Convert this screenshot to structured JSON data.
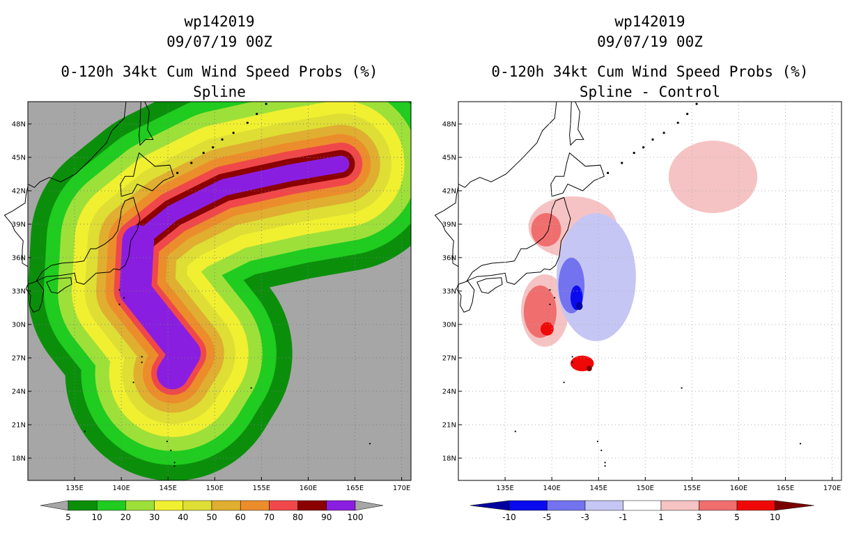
{
  "left_panel": {
    "title_line1": "wp142019",
    "title_line2": "09/07/19 00Z",
    "subtitle_line1": "0-120h 34kt Cum Wind Speed Probs (%)",
    "subtitle_line2": "Spline"
  },
  "right_panel": {
    "title_line1": "wp142019",
    "title_line2": "09/07/19 00Z",
    "subtitle_line1": "0-120h 34kt Cum Wind Speed Probs (%)",
    "subtitle_line2": "Spline - Control"
  },
  "colors": {
    "background_gray": "#a6a6a6",
    "coast": "#000000",
    "grid": "#b0b0b0"
  },
  "chart_data": [
    {
      "type": "heatmap",
      "title": "0-120h 34kt Cum Wind Speed Probs (%) Spline",
      "x_ticks": [
        "135E",
        "140E",
        "145E",
        "150E",
        "155E",
        "160E",
        "165E",
        "170E"
      ],
      "y_ticks": [
        "48N",
        "45N",
        "42N",
        "39N",
        "36N",
        "33N",
        "30N",
        "27N",
        "24N",
        "21N",
        "18N"
      ],
      "xlim": [
        130,
        171
      ],
      "ylim": [
        16,
        50
      ],
      "legend": {
        "labels": [
          "5",
          "10",
          "20",
          "30",
          "40",
          "50",
          "60",
          "70",
          "80",
          "90",
          "100"
        ],
        "colors": [
          "#0b8f0b",
          "#1fcc1f",
          "#9ee03a",
          "#f0f030",
          "#dede35",
          "#e0ae30",
          "#ec8d2b",
          "#f0484a",
          "#8b0000",
          "#8a1ee0"
        ]
      },
      "track": [
        [
          145.5,
          25.6
        ],
        [
          146.8,
          27.4
        ],
        [
          141.5,
          33.0
        ],
        [
          141.8,
          37.5
        ],
        [
          145.5,
          40.0
        ],
        [
          151,
          42.3
        ],
        [
          158,
          43.6
        ],
        [
          163.5,
          44.4
        ]
      ],
      "contours": [
        {
          "level": 5,
          "width": 11.5,
          "color_index": 0
        },
        {
          "level": 10,
          "width": 9.8,
          "color_index": 1
        },
        {
          "level": 20,
          "width": 8.3,
          "color_index": 2
        },
        {
          "level": 30,
          "width": 6.8,
          "color_index": 3
        },
        {
          "level": 40,
          "width": 5.4,
          "color_index": 4
        },
        {
          "level": 50,
          "width": 4.2,
          "color_index": 5
        },
        {
          "level": 60,
          "width": 3.2,
          "color_index": 6
        },
        {
          "level": 70,
          "width": 2.3,
          "color_index": 7
        },
        {
          "level": 80,
          "width": 1.5,
          "color_index": 8
        },
        {
          "level": 90,
          "width": 0.9,
          "color_index": 9
        }
      ]
    },
    {
      "type": "heatmap",
      "title": "0-120h 34kt Cum Wind Speed Probs (%) Spline - Control",
      "x_ticks": [
        "135E",
        "140E",
        "145E",
        "150E",
        "155E",
        "160E",
        "165E",
        "170E"
      ],
      "y_ticks": [
        "48N",
        "45N",
        "42N",
        "39N",
        "36N",
        "33N",
        "30N",
        "27N",
        "24N",
        "21N",
        "18N"
      ],
      "xlim": [
        130,
        171
      ],
      "ylim": [
        16,
        50
      ],
      "legend": {
        "labels": [
          "-10",
          "-5",
          "-3",
          "-1",
          "1",
          "3",
          "5",
          "10"
        ],
        "colors": [
          "#0000a0",
          "#0a0aef",
          "#7373ef",
          "#c6c6f5",
          "#ffffff",
          "#f5c3c3",
          "#f06e6e",
          "#f00808",
          "#7a0000"
        ]
      },
      "regions": [
        {
          "sign": "positive",
          "level": 1,
          "lon": [
            137.5,
            147
          ],
          "lat": [
            36,
            41.5
          ]
        },
        {
          "sign": "positive",
          "level": 3,
          "lon": [
            137.8,
            141
          ],
          "lat": [
            37,
            40
          ]
        },
        {
          "sign": "positive",
          "level": 1,
          "lon": [
            136.7,
            141.8
          ],
          "lat": [
            28,
            34.5
          ]
        },
        {
          "sign": "positive",
          "level": 3,
          "lon": [
            137,
            140.5
          ],
          "lat": [
            28.8,
            33.5
          ]
        },
        {
          "sign": "positive",
          "level": 5,
          "lon": [
            138.8,
            140.2
          ],
          "lat": [
            29,
            30.2
          ]
        },
        {
          "sign": "positive",
          "level": 1,
          "lon": [
            152.5,
            162
          ],
          "lat": [
            40,
            46.5
          ]
        },
        {
          "sign": "positive",
          "level": 5,
          "lon": [
            142,
            144.5
          ],
          "lat": [
            25.8,
            27.2
          ]
        },
        {
          "sign": "positive",
          "level": 10,
          "lon": [
            143.7,
            144.3
          ],
          "lat": [
            25.8,
            26.3
          ]
        },
        {
          "sign": "negative",
          "level": -1,
          "lon": [
            140.5,
            149
          ],
          "lat": [
            28.5,
            40
          ]
        },
        {
          "sign": "negative",
          "level": -3,
          "lon": [
            140.7,
            143.5
          ],
          "lat": [
            31,
            36
          ]
        },
        {
          "sign": "negative",
          "level": -5,
          "lon": [
            142,
            143.3
          ],
          "lat": [
            31.3,
            33.5
          ]
        },
        {
          "sign": "negative",
          "level": -10,
          "lon": [
            142.6,
            143.3
          ],
          "lat": [
            31.3,
            32
          ]
        }
      ]
    }
  ]
}
